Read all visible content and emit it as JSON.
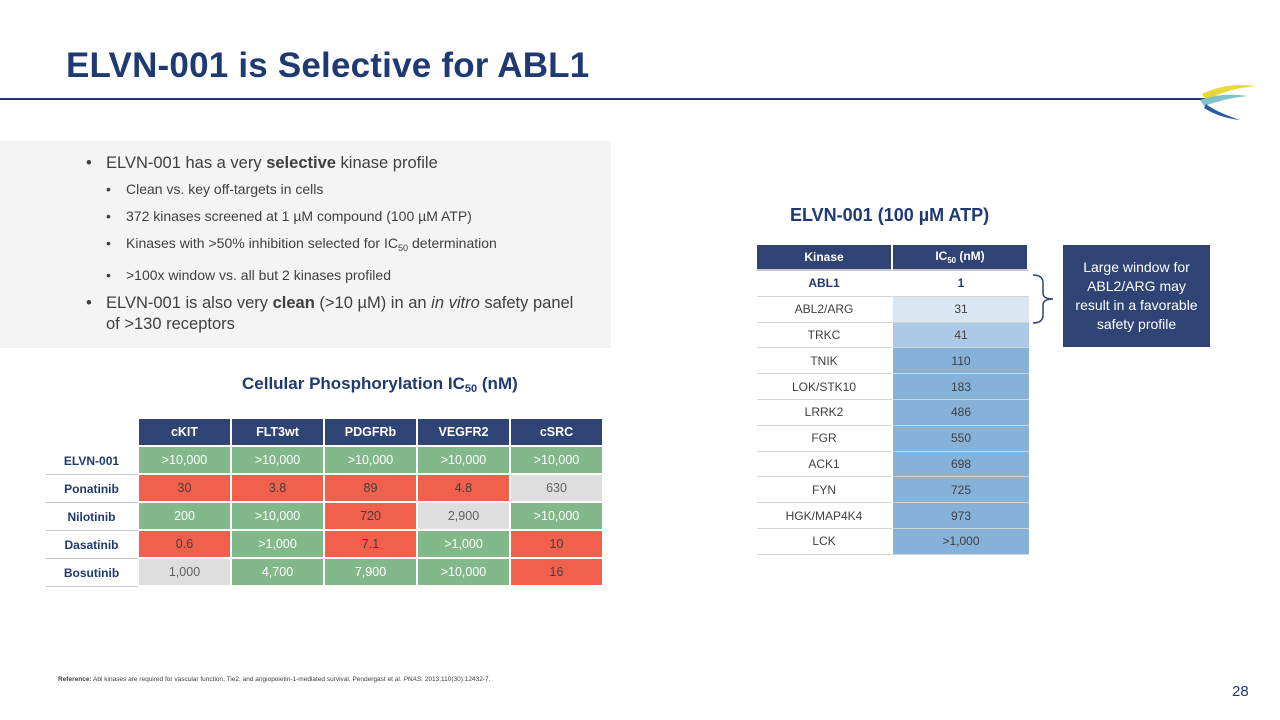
{
  "title": "ELVN-001 is Selective for ABL1",
  "bullets": [
    {
      "level": 1,
      "segments": [
        {
          "t": "ELVN-001 has a very "
        },
        {
          "t": "selective",
          "b": true
        },
        {
          "t": " kinase profile"
        }
      ]
    },
    {
      "level": 2,
      "segments": [
        {
          "t": "Clean vs. key off-targets in cells"
        }
      ]
    },
    {
      "level": 2,
      "segments": [
        {
          "t": "372 kinases screened at 1 µM compound (100 µM ATP)"
        }
      ]
    },
    {
      "level": 2,
      "segments": [
        {
          "t": "Kinases with >50% inhibition selected for IC"
        },
        {
          "t": "50",
          "sub": true
        },
        {
          "t": " determination"
        }
      ]
    },
    {
      "level": 2,
      "segments": [
        {
          "t": ">100x window vs. all but 2 kinases profiled"
        }
      ]
    },
    {
      "level": 1,
      "segments": [
        {
          "t": "ELVN-001 is also very "
        },
        {
          "t": "clean",
          "b": true
        },
        {
          "t": " (>10 µM) in an "
        },
        {
          "t": "in vitro",
          "i": true
        },
        {
          "t": " safety panel of >130 receptors"
        }
      ]
    }
  ],
  "cellular": {
    "title_main": "Cellular Phosphorylation IC",
    "title_sub": "50",
    "title_unit": " (nM)",
    "columns": [
      "cKIT",
      "FLT3wt",
      "PDGFRb",
      "VEGFR2",
      "cSRC"
    ],
    "rows": [
      {
        "name": "ELVN-001",
        "values": [
          ">10,000",
          ">10,000",
          ">10,000",
          ">10,000",
          ">10,000"
        ],
        "colors": [
          "green",
          "green",
          "green",
          "green",
          "green"
        ]
      },
      {
        "name": "Ponatinib",
        "values": [
          "30",
          "3.8",
          "89",
          "4.8",
          "630"
        ],
        "colors": [
          "red",
          "red",
          "red",
          "red",
          "grey"
        ]
      },
      {
        "name": "Nilotinib",
        "values": [
          "200",
          ">10,000",
          "720",
          "2,900",
          ">10,000"
        ],
        "colors": [
          "green",
          "green",
          "red",
          "grey",
          "green"
        ]
      },
      {
        "name": "Dasatinib",
        "values": [
          "0.6",
          ">1,000",
          "7.1",
          ">1,000",
          "10"
        ],
        "colors": [
          "red",
          "green",
          "red",
          "green",
          "red"
        ]
      },
      {
        "name": "Bosutinib",
        "values": [
          "1,000",
          "4,700",
          "7,900",
          ">10,000",
          "16"
        ],
        "colors": [
          "grey",
          "green",
          "green",
          "green",
          "red"
        ]
      }
    ],
    "color_map": {
      "green": "#83b98a",
      "red": "#f0604d",
      "grey": "#dedede"
    }
  },
  "kinase": {
    "title": "ELVN-001 (100 µM ATP)",
    "col_kinase": "Kinase",
    "col_ic_main": "IC",
    "col_ic_sub": "50",
    "col_ic_unit": " (nM)",
    "rows": [
      {
        "name": "ABL1",
        "value": "1",
        "shade": "white"
      },
      {
        "name": "ABL2/ARG",
        "value": "31",
        "shade": "pale"
      },
      {
        "name": "TRKC",
        "value": "41",
        "shade": "light"
      },
      {
        "name": "TNIK",
        "value": "110",
        "shade": "mid"
      },
      {
        "name": "LOK/STK10",
        "value": "183",
        "shade": "mid"
      },
      {
        "name": "LRRK2",
        "value": "486",
        "shade": "mid"
      },
      {
        "name": "FGR",
        "value": "550",
        "shade": "mid"
      },
      {
        "name": "ACK1",
        "value": "698",
        "shade": "mid"
      },
      {
        "name": "FYN",
        "value": "725",
        "shade": "mid"
      },
      {
        "name": "HGK/MAP4K4",
        "value": "973",
        "shade": "mid"
      },
      {
        "name": "LCK",
        "value": ">1,000",
        "shade": "mid"
      }
    ]
  },
  "callout": "Large window for ABL2/ARG may result in a favorable safety profile",
  "reference": {
    "label": "Reference:",
    "text": " Abl kinases are required for vascular function, Tie2, and angiopoietin-1-mediated survival. Pendergast et al. ",
    "journal": "PNAS.",
    "citation": " 2013;110(30):12432-7."
  },
  "page_number": "28",
  "colors": {
    "navy": "#1f3a73",
    "header_fill": "#2f4474"
  }
}
